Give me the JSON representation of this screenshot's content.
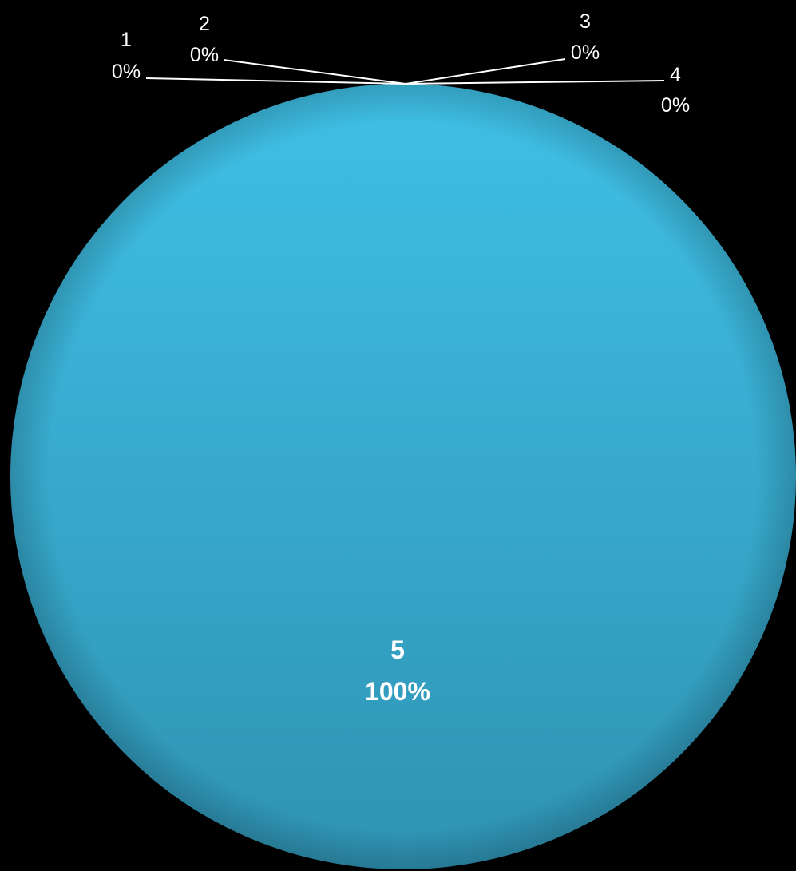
{
  "chart_data": {
    "type": "pie",
    "categories": [
      "1",
      "2",
      "3",
      "4",
      "5"
    ],
    "values": [
      0,
      0,
      0,
      0,
      100
    ],
    "percent_labels": [
      "0%",
      "0%",
      "0%",
      "0%",
      "100%"
    ],
    "colors": {
      "slice_top": "#3fc0e6",
      "slice_bottom": "#2f93b3",
      "background": "#000000",
      "label_text": "#ffffff",
      "leader_line": "#ffffff"
    },
    "legend": "none"
  }
}
